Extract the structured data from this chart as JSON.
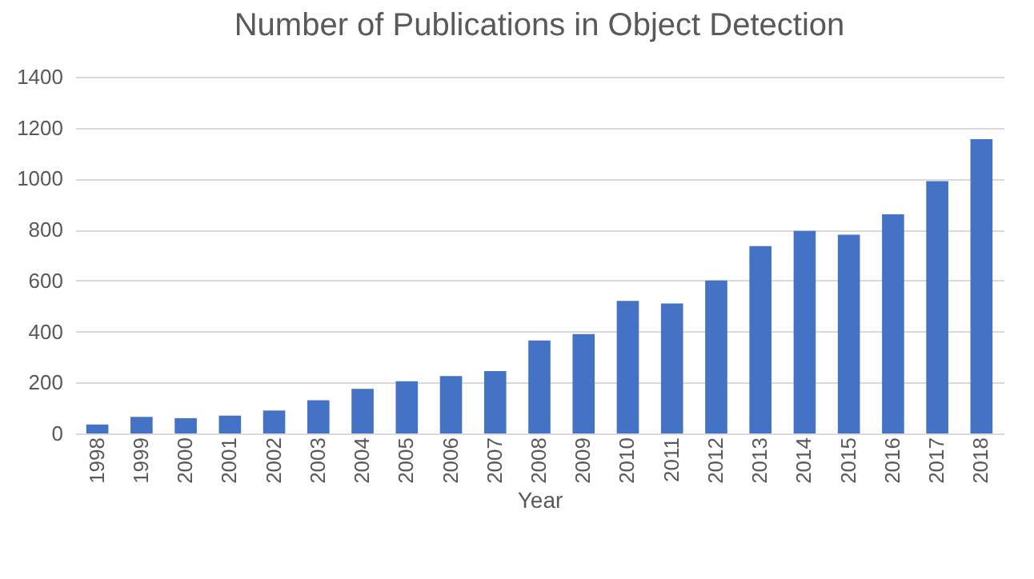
{
  "chart_data": {
    "type": "bar",
    "title": "Number of Publications in Object Detection",
    "xlabel": "Year",
    "categories": [
      "1998",
      "1999",
      "2000",
      "2001",
      "2002",
      "2003",
      "2004",
      "2005",
      "2006",
      "2007",
      "2008",
      "2009",
      "2010",
      "2011",
      "2012",
      "2013",
      "2014",
      "2015",
      "2016",
      "2017",
      "2018"
    ],
    "values": [
      35,
      65,
      60,
      70,
      90,
      130,
      175,
      205,
      225,
      245,
      365,
      390,
      520,
      510,
      600,
      735,
      795,
      780,
      860,
      990,
      1155
    ],
    "color": "#4472c4",
    "ylim": [
      0,
      1400
    ],
    "yticks": [
      0,
      200,
      400,
      600,
      800,
      1000,
      1200,
      1400
    ],
    "grid": "y"
  }
}
